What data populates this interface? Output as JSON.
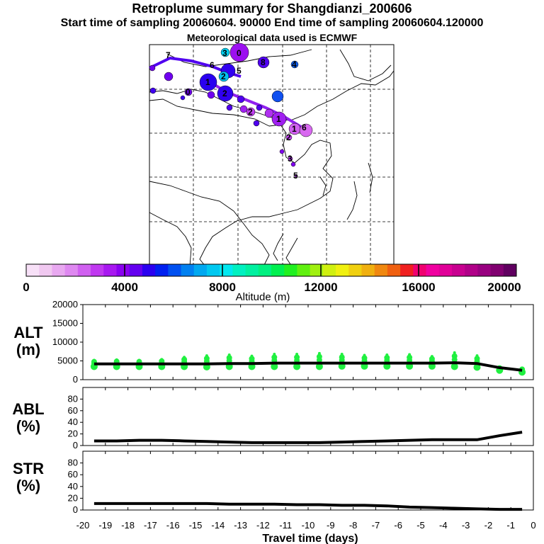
{
  "header": {
    "title": "Retroplume summary for Shangdianzi_200606",
    "subtitle": "Start time of sampling 20060604. 90000     End time of sampling 20060604.120000",
    "met_line": "Meteorological data used is ECMWF"
  },
  "colorbar": {
    "label": "Altitude (m)",
    "ticks": [
      "0",
      "4000",
      "8000",
      "12000",
      "16000",
      "20000"
    ],
    "colors": [
      "#f7e0f7",
      "#f0c8f0",
      "#e8a8f0",
      "#de88f0",
      "#d060f0",
      "#c038f0",
      "#a818f0",
      "#8a00f0",
      "#6400f0",
      "#2a00f0",
      "#0020f0",
      "#0050f0",
      "#0080f0",
      "#00a8f0",
      "#00c8f0",
      "#00e8f0",
      "#00f0c0",
      "#00f0a0",
      "#00f080",
      "#00f050",
      "#20f020",
      "#60f010",
      "#a0f010",
      "#d0f010",
      "#f0f010",
      "#f0d010",
      "#f0b010",
      "#f08810",
      "#f06010",
      "#f02020",
      "#f00070",
      "#f000a0",
      "#e00098",
      "#c80090",
      "#b00088",
      "#980080",
      "#800070",
      "#600060"
    ]
  },
  "map": {
    "cluster_labels": [
      "1",
      "2",
      "3",
      "4",
      "5",
      "6",
      "7",
      "8",
      "9",
      "0"
    ]
  },
  "chart_data": [
    {
      "type": "line",
      "panel": "ALT",
      "ylabel": "ALT\n(m)",
      "ylabel_lines": [
        "ALT",
        "(m)"
      ],
      "ylim": [
        0,
        20000
      ],
      "yticks": [
        0,
        5000,
        10000,
        15000,
        20000
      ],
      "xlim": [
        -20,
        0
      ],
      "x": [
        -19.5,
        -18.5,
        -17.5,
        -16.5,
        -15.5,
        -14.5,
        -13.5,
        -12.5,
        -11.5,
        -10.5,
        -9.5,
        -8.5,
        -7.5,
        -6.5,
        -5.5,
        -4.5,
        -3.5,
        -2.5,
        -1.5,
        -0.5
      ],
      "values": [
        4200,
        4200,
        4200,
        4200,
        4200,
        4200,
        4300,
        4300,
        4400,
        4400,
        4400,
        4400,
        4400,
        4400,
        4400,
        4400,
        4500,
        4300,
        3200,
        2500
      ],
      "cluster_points": {
        "series_color": "#20f040",
        "x": [
          -19.5,
          -18.5,
          -17.5,
          -16.5,
          -15.5,
          -14.5,
          -13.5,
          -12.5,
          -11.5,
          -10.5,
          -9.5,
          -8.5,
          -7.5,
          -6.5,
          -5.5,
          -4.5,
          -3.5,
          -2.5,
          -1.5,
          -0.5
        ],
        "low": [
          3500,
          3500,
          3500,
          3500,
          3500,
          3400,
          3500,
          3500,
          3500,
          3500,
          3500,
          3600,
          3600,
          3600,
          3600,
          3600,
          3500,
          3300,
          2500,
          2000
        ],
        "high": [
          5200,
          5300,
          5200,
          5400,
          6000,
          6400,
          6600,
          6300,
          6800,
          6800,
          7000,
          6800,
          6500,
          6600,
          6700,
          6200,
          7200,
          6400,
          3300,
          3000
        ]
      }
    },
    {
      "type": "line",
      "panel": "ABL",
      "ylabel_lines": [
        "ABL",
        "(%)"
      ],
      "ylim": [
        0,
        100
      ],
      "yticks": [
        0,
        20,
        40,
        60,
        80
      ],
      "xlim": [
        -20,
        0
      ],
      "x": [
        -19.5,
        -18.5,
        -17.5,
        -16.5,
        -15.5,
        -14.5,
        -13.5,
        -12.5,
        -11.5,
        -10.5,
        -9.5,
        -8.5,
        -7.5,
        -6.5,
        -5.5,
        -4.5,
        -3.5,
        -2.5,
        -1.5,
        -0.5
      ],
      "values": [
        8,
        8,
        9,
        9,
        8,
        7,
        6,
        5,
        5,
        5,
        5,
        6,
        7,
        8,
        9,
        10,
        10,
        10,
        17,
        23
      ]
    },
    {
      "type": "line",
      "panel": "STR",
      "ylabel_lines": [
        "STR",
        "(%)"
      ],
      "ylim": [
        0,
        100
      ],
      "yticks": [
        0,
        20,
        40,
        60,
        80
      ],
      "xlim": [
        -20,
        0
      ],
      "x": [
        -19.5,
        -18.5,
        -17.5,
        -16.5,
        -15.5,
        -14.5,
        -13.5,
        -12.5,
        -11.5,
        -10.5,
        -9.5,
        -8.5,
        -7.5,
        -6.5,
        -5.5,
        -4.5,
        -3.5,
        -2.5,
        -1.5,
        -0.5
      ],
      "values": [
        11,
        11,
        11,
        11,
        11,
        11,
        10,
        10,
        10,
        9,
        9,
        8,
        8,
        7,
        5,
        4,
        3,
        2,
        1,
        1
      ]
    }
  ],
  "xaxis": {
    "label": "Travel time (days)",
    "ticks": [
      "-20",
      "-19",
      "-18",
      "-17",
      "-16",
      "-15",
      "-14",
      "-13",
      "-12",
      "-11",
      "-10",
      "-9",
      "-8",
      "-7",
      "-6",
      "-5",
      "-4",
      "-3",
      "-2",
      "-1",
      "0"
    ]
  }
}
